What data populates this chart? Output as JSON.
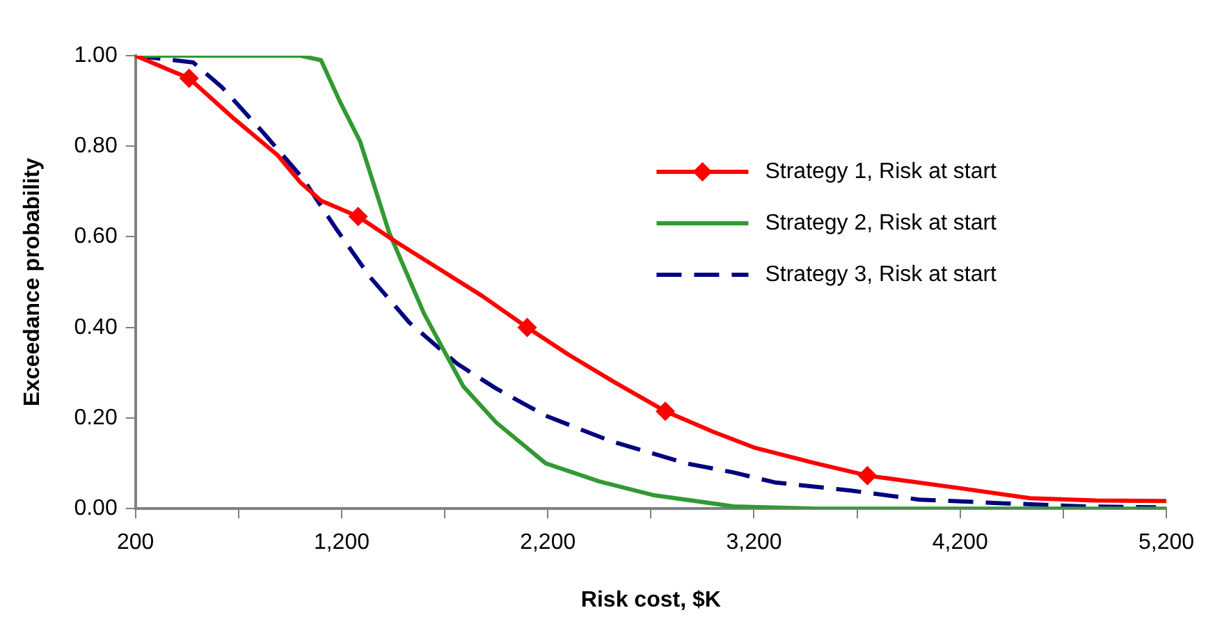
{
  "chart_data": {
    "type": "line",
    "xlabel": "Risk cost, $K",
    "ylabel": "Exceedance probability",
    "xlim": [
      200,
      5200
    ],
    "xticks": [
      {
        "value": 200,
        "label": "200"
      },
      {
        "value": 700,
        "label": null
      },
      {
        "value": 1200,
        "label": "1,200"
      },
      {
        "value": 1700,
        "label": null
      },
      {
        "value": 2200,
        "label": "2,200"
      },
      {
        "value": 2700,
        "label": null
      },
      {
        "value": 3200,
        "label": "3,200"
      },
      {
        "value": 3700,
        "label": null
      },
      {
        "value": 4200,
        "label": "4,200"
      },
      {
        "value": 4700,
        "label": null
      },
      {
        "value": 5200,
        "label": "5,200"
      }
    ],
    "ylim": [
      0,
      1
    ],
    "yticks": [
      {
        "value": 0,
        "label": "0.00"
      },
      {
        "value": 0.2,
        "label": "0.20"
      },
      {
        "value": 0.4,
        "label": "0.40"
      },
      {
        "value": 0.6,
        "label": "0.60"
      },
      {
        "value": 0.8,
        "label": "0.80"
      },
      {
        "value": 1,
        "label": "1.00"
      }
    ],
    "grid": false,
    "legend": "top right",
    "series": [
      {
        "name": "Strategy 1, Risk at start",
        "color": "#ff0000",
        "line_style": "solid",
        "x": [
          200,
          460,
          680,
          890,
          1000,
          1100,
          1280,
          1460,
          1670,
          1880,
          2100,
          2300,
          2520,
          2770,
          3000,
          3200,
          3500,
          3750,
          4200,
          4540,
          4860,
          5200
        ],
        "values": [
          1.0,
          0.95,
          0.86,
          0.78,
          0.72,
          0.68,
          0.645,
          0.59,
          0.53,
          0.47,
          0.4,
          0.34,
          0.28,
          0.215,
          0.17,
          0.135,
          0.1,
          0.073,
          0.045,
          0.023,
          0.018,
          0.017
        ]
      },
      {
        "type": "scatter",
        "color": "#ff0000",
        "marker": "diamond",
        "x": [
          460,
          1280,
          2100,
          2770,
          3750
        ],
        "values": [
          0.95,
          0.645,
          0.4,
          0.215,
          0.073
        ]
      },
      {
        "name": "Strategy 2, Risk at start",
        "color": "#339933",
        "line_style": "solid",
        "x": [
          200,
          1000,
          1100,
          1190,
          1290,
          1430,
          1600,
          1790,
          1950,
          2190,
          2450,
          2710,
          3100,
          3500,
          5200
        ],
        "values": [
          1.0,
          1.0,
          0.99,
          0.9,
          0.81,
          0.61,
          0.43,
          0.27,
          0.19,
          0.1,
          0.06,
          0.03,
          0.005,
          0,
          0
        ]
      },
      {
        "name": "Strategy 3, Risk at start",
        "color": "#000080",
        "line_style": "dashed",
        "x": [
          200,
          480,
          620,
          820,
          1010,
          1170,
          1340,
          1530,
          1760,
          1950,
          2190,
          2500,
          2870,
          3100,
          3300,
          3670,
          4000,
          4400,
          4800,
          5150
        ],
        "values": [
          1.0,
          0.985,
          0.93,
          0.83,
          0.73,
          0.62,
          0.51,
          0.41,
          0.32,
          0.265,
          0.205,
          0.15,
          0.1,
          0.08,
          0.058,
          0.04,
          0.02,
          0.012,
          0.005,
          0.003
        ]
      }
    ]
  }
}
